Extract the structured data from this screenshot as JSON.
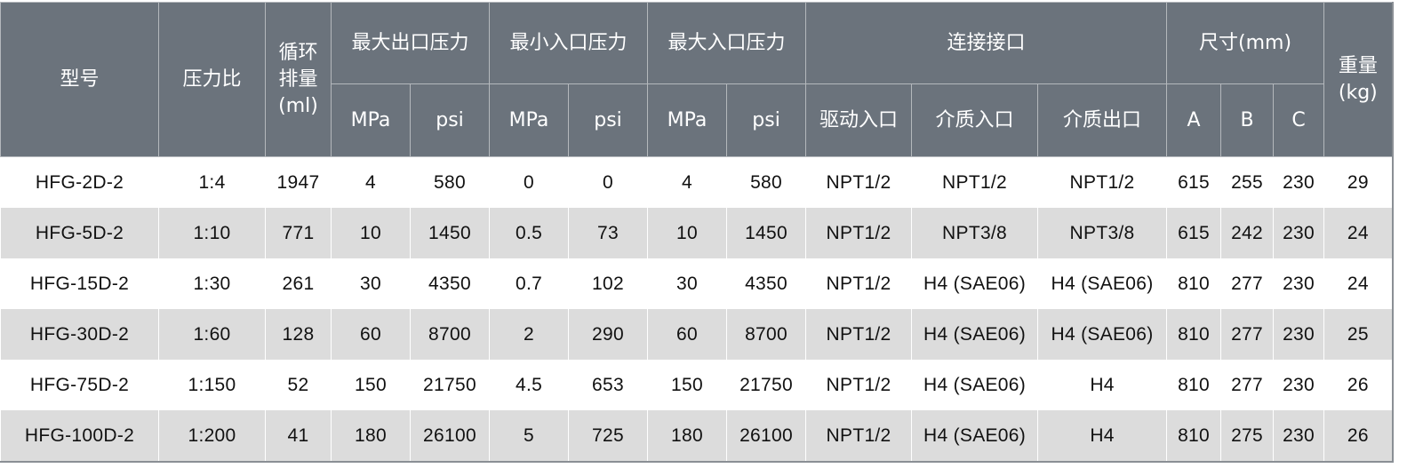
{
  "header": {
    "model": "型号",
    "ratio": "压力比",
    "displacement": "循环排量(ml)",
    "max_outlet": "最大出口压力",
    "min_inlet": "最小入口压力",
    "max_inlet": "最大入口压力",
    "connections": "连接接口",
    "dimensions": "尺寸(mm)",
    "weight": "重量(kg)",
    "mpa": "MPa",
    "psi": "psi",
    "drive_inlet": "驱动入口",
    "media_inlet": "介质入口",
    "media_outlet": "介质出口",
    "a": "A",
    "b": "B",
    "c": "C"
  },
  "colors": {
    "header_bg": "#6b737c",
    "stripe": "#dcdcdc"
  },
  "rows": [
    [
      "HFG-2D-2",
      "1:4",
      "1947",
      "4",
      "580",
      "0",
      "0",
      "4",
      "580",
      "NPT1/2",
      "NPT1/2",
      "NPT1/2",
      "615",
      "255",
      "230",
      "29"
    ],
    [
      "HFG-5D-2",
      "1:10",
      "771",
      "10",
      "1450",
      "0.5",
      "73",
      "10",
      "1450",
      "NPT1/2",
      "NPT3/8",
      "NPT3/8",
      "615",
      "242",
      "230",
      "24"
    ],
    [
      "HFG-15D-2",
      "1:30",
      "261",
      "30",
      "4350",
      "0.7",
      "102",
      "30",
      "4350",
      "NPT1/2",
      "H4 (SAE06)",
      "H4 (SAE06)",
      "810",
      "277",
      "230",
      "24"
    ],
    [
      "HFG-30D-2",
      "1:60",
      "128",
      "60",
      "8700",
      "2",
      "290",
      "60",
      "8700",
      "NPT1/2",
      "H4 (SAE06)",
      "H4 (SAE06)",
      "810",
      "277",
      "230",
      "25"
    ],
    [
      "HFG-75D-2",
      "1:150",
      "52",
      "150",
      "21750",
      "4.5",
      "653",
      "150",
      "21750",
      "NPT1/2",
      "H4 (SAE06)",
      "H4",
      "810",
      "277",
      "230",
      "26"
    ],
    [
      "HFG-100D-2",
      "1:200",
      "41",
      "180",
      "26100",
      "5",
      "725",
      "180",
      "26100",
      "NPT1/2",
      "H4 (SAE06)",
      "H4",
      "810",
      "275",
      "230",
      "26"
    ]
  ]
}
